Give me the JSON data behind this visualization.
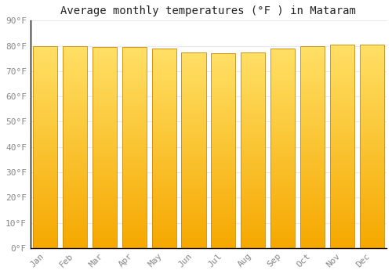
{
  "title": "Average monthly temperatures (°F ) in Mataram",
  "months": [
    "Jan",
    "Feb",
    "Mar",
    "Apr",
    "May",
    "Jun",
    "Jul",
    "Aug",
    "Sep",
    "Oct",
    "Nov",
    "Dec"
  ],
  "values": [
    80,
    80,
    79.5,
    79.5,
    79,
    77.5,
    77,
    77.5,
    79,
    80,
    80.5,
    80.5
  ],
  "ylim": [
    0,
    90
  ],
  "yticks": [
    0,
    10,
    20,
    30,
    40,
    50,
    60,
    70,
    80,
    90
  ],
  "bar_color_bottom": "#F5A800",
  "bar_color_top": "#FFE066",
  "bar_edge_color": "#C8880A",
  "background_color": "#ffffff",
  "plot_bg_color": "#ffffff",
  "grid_color": "#e8e8f0",
  "title_fontsize": 10,
  "tick_fontsize": 8,
  "tick_color": "#888888",
  "bar_width": 0.82
}
